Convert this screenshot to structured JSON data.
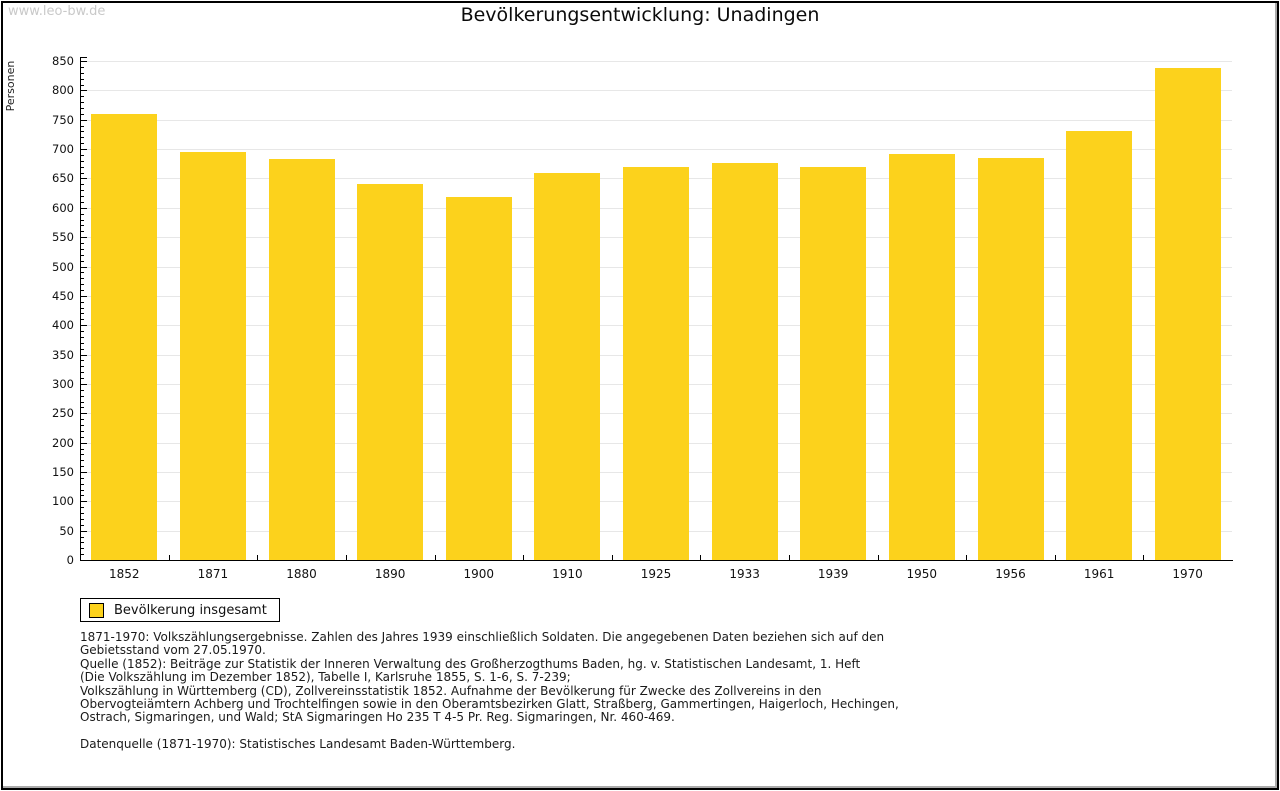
{
  "watermark": "www.leo-bw.de",
  "title": "Bevölkerungsentwicklung: Unadingen",
  "chart_data": {
    "type": "bar",
    "title": "Bevölkerungsentwicklung: Unadingen",
    "xlabel": "",
    "ylabel": "Personen",
    "ylim": [
      0,
      850
    ],
    "ytick_step": 50,
    "ytick_minor_step": 10,
    "grid": true,
    "bar_color": "#FCD21C",
    "legend_label": "Bevölkerung insgesamt",
    "legend_position": "bottom-left",
    "categories": [
      "1852",
      "1871",
      "1880",
      "1890",
      "1900",
      "1910",
      "1925",
      "1933",
      "1939",
      "1950",
      "1956",
      "1961",
      "1970"
    ],
    "values": [
      759,
      695,
      684,
      640,
      618,
      659,
      670,
      676,
      670,
      691,
      685,
      731,
      838
    ]
  },
  "footnotes": {
    "lines": [
      "1871-1970: Volkszählungsergebnisse. Zahlen des Jahres 1939 einschließlich Soldaten. Die angegebenen Daten beziehen sich auf den",
      "Gebietsstand vom 27.05.1970.",
      "Quelle (1852): Beiträge zur Statistik der Inneren Verwaltung des Großherzogthums Baden, hg. v. Statistischen Landesamt, 1. Heft",
      "(Die Volkszählung im Dezember 1852), Tabelle I, Karlsruhe 1855, S. 1-6, S. 7-239;",
      "Volkszählung in Württemberg (CD), Zollvereinsstatistik 1852. Aufnahme der Bevölkerung für Zwecke des Zollvereins in den",
      "Obervogteiämtern Achberg und Trochtelfingen sowie in den Oberamtsbezirken Glatt, Straßberg, Gammertingen, Haigerloch, Hechingen,",
      "Ostrach, Sigmaringen, und Wald; StA Sigmaringen Ho 235 T 4-5 Pr. Reg. Sigmaringen, Nr. 460-469."
    ],
    "datasource": "Datenquelle (1871-1970): Statistisches Landesamt Baden-Württemberg."
  }
}
